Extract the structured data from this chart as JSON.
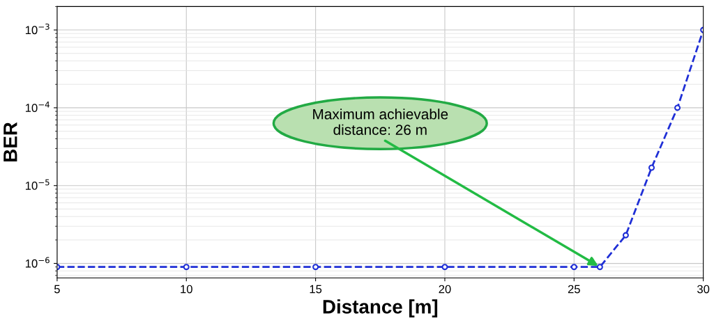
{
  "chart_data": {
    "type": "line",
    "xlabel": "Distance [m]",
    "ylabel": "BER",
    "x": [
      5,
      10,
      15,
      20,
      25,
      26,
      27,
      28,
      29,
      30
    ],
    "series": [
      {
        "color": "#1f2fd6",
        "values": [
          9e-07,
          9e-07,
          9e-07,
          9e-07,
          9e-07,
          9e-07,
          2.3e-06,
          1.7e-05,
          0.0001,
          0.001
        ]
      }
    ],
    "log": "y",
    "xlim": [
      5,
      30
    ],
    "xticks": [
      5,
      10,
      15,
      20,
      25,
      30
    ],
    "ylim": [
      6.5e-07,
      0.002
    ],
    "yticks": [
      {
        "value": 1e-06,
        "label": "10$^{−6}$"
      },
      {
        "value": 1e-05,
        "label": "10$^{−5}$"
      },
      {
        "value": 0.0001,
        "label": "10$^{−4}$"
      },
      {
        "value": 0.001,
        "label": "10$^{−3}$"
      }
    ],
    "grid": true,
    "marker": "circle",
    "line_style": "dashed",
    "annotations": [
      {
        "text": "Maximum achievable\ndistance: 26 m",
        "x": 26,
        "y": 9e-07
      }
    ]
  }
}
